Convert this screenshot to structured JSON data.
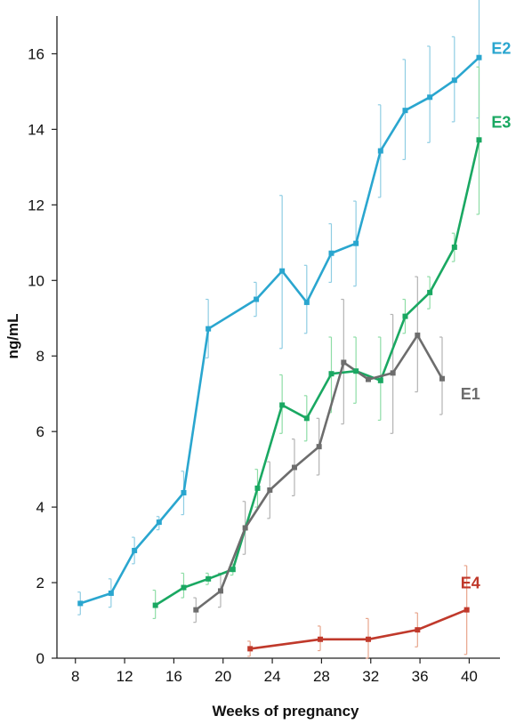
{
  "chart_data": {
    "type": "line",
    "title": "",
    "xlabel": "Weeks of pregnancy",
    "ylabel": "ng/mL",
    "xlim": [
      6.5,
      42.5
    ],
    "ylim": [
      0,
      17
    ],
    "x_ticks": [
      8,
      12,
      16,
      20,
      24,
      28,
      32,
      36,
      40
    ],
    "y_ticks": [
      0,
      2,
      4,
      6,
      8,
      10,
      12,
      14,
      16
    ],
    "x_tick_labels": [
      "8",
      "12",
      "16",
      "20",
      "24",
      "28",
      "32",
      "36",
      "40"
    ],
    "y_tick_labels": [
      "0",
      "2",
      "4",
      "6",
      "8",
      "10",
      "12",
      "14",
      "16"
    ],
    "grid": false,
    "legend": "inline series labels",
    "series": [
      {
        "name": "E2",
        "color": "#2aa6cf",
        "error_color": "#8fcde3",
        "points": [
          {
            "x": 8.4,
            "y": 1.45,
            "lo": 1.15,
            "hi": 1.75
          },
          {
            "x": 10.9,
            "y": 1.72,
            "lo": 1.35,
            "hi": 2.1
          },
          {
            "x": 12.8,
            "y": 2.85,
            "lo": 2.5,
            "hi": 3.2
          },
          {
            "x": 14.8,
            "y": 3.6,
            "lo": 3.4,
            "hi": 3.75
          },
          {
            "x": 16.8,
            "y": 4.38,
            "lo": 3.8,
            "hi": 4.95
          },
          {
            "x": 18.8,
            "y": 8.72,
            "lo": 7.95,
            "hi": 9.5
          },
          {
            "x": 22.7,
            "y": 9.5,
            "lo": 9.05,
            "hi": 9.95
          },
          {
            "x": 24.8,
            "y": 10.25,
            "lo": 8.2,
            "hi": 12.25
          },
          {
            "x": 26.8,
            "y": 9.42,
            "lo": 8.6,
            "hi": 10.4
          },
          {
            "x": 28.8,
            "y": 10.72,
            "lo": 9.95,
            "hi": 11.5
          },
          {
            "x": 30.8,
            "y": 10.98,
            "lo": 9.85,
            "hi": 12.1
          },
          {
            "x": 32.8,
            "y": 13.43,
            "lo": 12.2,
            "hi": 14.65
          },
          {
            "x": 34.8,
            "y": 14.5,
            "lo": 13.2,
            "hi": 15.85
          },
          {
            "x": 36.8,
            "y": 14.85,
            "lo": 13.65,
            "hi": 16.2
          },
          {
            "x": 38.8,
            "y": 15.3,
            "lo": 14.2,
            "hi": 16.45
          },
          {
            "x": 40.8,
            "y": 15.9,
            "lo": 14.3,
            "hi": 17.5
          }
        ]
      },
      {
        "name": "E3",
        "color": "#1aa862",
        "error_color": "#8edda6",
        "points": [
          {
            "x": 14.5,
            "y": 1.4,
            "lo": 1.05,
            "hi": 1.8
          },
          {
            "x": 16.8,
            "y": 1.87,
            "lo": 1.6,
            "hi": 2.25
          },
          {
            "x": 18.8,
            "y": 2.1,
            "lo": 1.95,
            "hi": 2.25
          },
          {
            "x": 20.8,
            "y": 2.35,
            "lo": 2.2,
            "hi": 2.5
          },
          {
            "x": 22.8,
            "y": 4.5,
            "lo": 4.0,
            "hi": 5.0
          },
          {
            "x": 24.8,
            "y": 6.7,
            "lo": 5.95,
            "hi": 7.5
          },
          {
            "x": 26.8,
            "y": 6.35,
            "lo": 5.75,
            "hi": 6.95
          },
          {
            "x": 28.8,
            "y": 7.53,
            "lo": 6.5,
            "hi": 8.5
          },
          {
            "x": 30.8,
            "y": 7.6,
            "lo": 6.75,
            "hi": 8.5
          },
          {
            "x": 32.8,
            "y": 7.35,
            "lo": 6.3,
            "hi": 8.5
          },
          {
            "x": 34.8,
            "y": 9.05,
            "lo": 8.6,
            "hi": 9.5
          },
          {
            "x": 36.8,
            "y": 9.68,
            "lo": 9.25,
            "hi": 10.1
          },
          {
            "x": 38.8,
            "y": 10.88,
            "lo": 10.5,
            "hi": 11.25
          },
          {
            "x": 40.8,
            "y": 13.72,
            "lo": 11.75,
            "hi": 15.65
          }
        ]
      },
      {
        "name": "E1",
        "color": "#6d6d6d",
        "error_color": "#b3b3b3",
        "points": [
          {
            "x": 17.8,
            "y": 1.28,
            "lo": 0.95,
            "hi": 1.6
          },
          {
            "x": 19.8,
            "y": 1.78,
            "lo": 1.35,
            "hi": 2.25
          },
          {
            "x": 21.8,
            "y": 3.45,
            "lo": 2.75,
            "hi": 4.15
          },
          {
            "x": 23.8,
            "y": 4.45,
            "lo": 3.7,
            "hi": 5.2
          },
          {
            "x": 25.8,
            "y": 5.05,
            "lo": 4.3,
            "hi": 5.8
          },
          {
            "x": 27.8,
            "y": 5.6,
            "lo": 4.85,
            "hi": 6.35
          },
          {
            "x": 29.8,
            "y": 7.83,
            "lo": 6.2,
            "hi": 9.5
          },
          {
            "x": 31.8,
            "y": 7.38,
            "lo": 7.38,
            "hi": 7.38
          },
          {
            "x": 33.8,
            "y": 7.55,
            "lo": 5.95,
            "hi": 9.1
          },
          {
            "x": 35.8,
            "y": 8.55,
            "lo": 7.05,
            "hi": 10.1
          },
          {
            "x": 37.8,
            "y": 7.4,
            "lo": 6.45,
            "hi": 8.5
          }
        ]
      },
      {
        "name": "E4",
        "color": "#c0392b",
        "error_color": "#e8a58c",
        "points": [
          {
            "x": 22.2,
            "y": 0.25,
            "lo": 0.05,
            "hi": 0.45
          },
          {
            "x": 27.9,
            "y": 0.5,
            "lo": 0.2,
            "hi": 0.85
          },
          {
            "x": 31.8,
            "y": 0.5,
            "lo": 0.0,
            "hi": 1.05
          },
          {
            "x": 35.8,
            "y": 0.75,
            "lo": 0.3,
            "hi": 1.2
          },
          {
            "x": 39.8,
            "y": 1.28,
            "lo": 0.1,
            "hi": 2.45
          }
        ]
      }
    ]
  }
}
